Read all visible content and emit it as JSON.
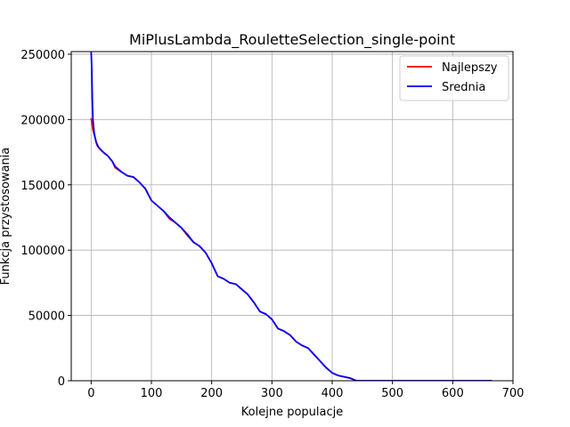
{
  "chart_data": {
    "type": "line",
    "title": "MiPlusLambda_RouletteSelection_single-point",
    "xlabel": "Kolejne populacje",
    "ylabel": "Funkcja przystosowania",
    "xlim": [
      -33,
      700
    ],
    "ylim": [
      0,
      252000
    ],
    "xticks": [
      0,
      100,
      200,
      300,
      400,
      500,
      600,
      700
    ],
    "yticks": [
      0,
      50000,
      100000,
      150000,
      200000,
      250000
    ],
    "grid": true,
    "legend_position": "top-right",
    "series": [
      {
        "name": "Najlepszy",
        "color": "#ff0000",
        "points": [
          [
            0,
            201000
          ],
          [
            3,
            192000
          ],
          [
            6,
            187000
          ],
          [
            10,
            180000
          ],
          [
            15,
            177000
          ],
          [
            20,
            175000
          ],
          [
            28,
            172000
          ],
          [
            35,
            168000
          ],
          [
            40,
            163000
          ],
          [
            50,
            160000
          ],
          [
            60,
            157000
          ],
          [
            70,
            156000
          ],
          [
            80,
            152000
          ],
          [
            90,
            147000
          ],
          [
            100,
            138000
          ],
          [
            110,
            134000
          ],
          [
            120,
            130000
          ],
          [
            130,
            124000
          ],
          [
            140,
            121000
          ],
          [
            150,
            117000
          ],
          [
            160,
            111000
          ],
          [
            170,
            106000
          ],
          [
            180,
            103000
          ],
          [
            190,
            98000
          ],
          [
            200,
            90000
          ],
          [
            210,
            80000
          ],
          [
            220,
            78000
          ],
          [
            230,
            75000
          ],
          [
            240,
            74000
          ],
          [
            250,
            70000
          ],
          [
            260,
            66000
          ],
          [
            270,
            60000
          ],
          [
            280,
            53000
          ],
          [
            290,
            51000
          ],
          [
            300,
            47000
          ],
          [
            310,
            40000
          ],
          [
            320,
            38000
          ],
          [
            330,
            35000
          ],
          [
            340,
            30000
          ],
          [
            350,
            27000
          ],
          [
            360,
            25000
          ],
          [
            370,
            20000
          ],
          [
            380,
            15000
          ],
          [
            390,
            10000
          ],
          [
            400,
            6000
          ],
          [
            410,
            4000
          ],
          [
            420,
            3000
          ],
          [
            430,
            2000
          ],
          [
            440,
            0
          ],
          [
            500,
            0
          ],
          [
            560,
            0
          ],
          [
            620,
            0
          ],
          [
            665,
            0
          ]
        ]
      },
      {
        "name": "Srednia",
        "color": "#0000ff",
        "points": [
          [
            0,
            252000
          ],
          [
            1,
            240000
          ],
          [
            2,
            215000
          ],
          [
            3,
            200000
          ],
          [
            5,
            190000
          ],
          [
            8,
            183000
          ],
          [
            12,
            179000
          ],
          [
            20,
            175000
          ],
          [
            28,
            172000
          ],
          [
            35,
            168000
          ],
          [
            40,
            164000
          ],
          [
            50,
            160000
          ],
          [
            60,
            157000
          ],
          [
            70,
            156000
          ],
          [
            80,
            152000
          ],
          [
            90,
            147000
          ],
          [
            100,
            138000
          ],
          [
            110,
            134000
          ],
          [
            120,
            130000
          ],
          [
            130,
            125000
          ],
          [
            140,
            121000
          ],
          [
            150,
            117000
          ],
          [
            160,
            112000
          ],
          [
            170,
            106000
          ],
          [
            180,
            103000
          ],
          [
            190,
            98000
          ],
          [
            200,
            90000
          ],
          [
            210,
            80000
          ],
          [
            220,
            78000
          ],
          [
            230,
            75000
          ],
          [
            240,
            74000
          ],
          [
            250,
            70000
          ],
          [
            260,
            66000
          ],
          [
            270,
            60000
          ],
          [
            280,
            53000
          ],
          [
            290,
            51000
          ],
          [
            300,
            47000
          ],
          [
            310,
            40000
          ],
          [
            320,
            38000
          ],
          [
            330,
            35000
          ],
          [
            340,
            30000
          ],
          [
            350,
            27000
          ],
          [
            360,
            25000
          ],
          [
            370,
            20000
          ],
          [
            380,
            15000
          ],
          [
            390,
            10000
          ],
          [
            400,
            6000
          ],
          [
            410,
            4000
          ],
          [
            420,
            3000
          ],
          [
            430,
            2000
          ],
          [
            440,
            0
          ],
          [
            500,
            0
          ],
          [
            560,
            0
          ],
          [
            620,
            0
          ],
          [
            665,
            0
          ]
        ]
      }
    ]
  }
}
